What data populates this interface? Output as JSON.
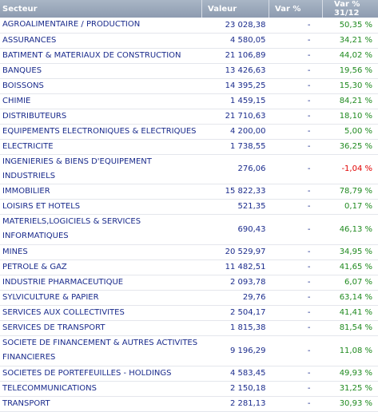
{
  "header": {
    "col_secteur": "Secteur",
    "col_valeur": "Valeur",
    "col_var": "Var %",
    "col_var_ytd": "Var % 31/12"
  },
  "colors": {
    "positive": "#1f8a1f",
    "negative": "#e10000",
    "text": "#1a2b8c",
    "header_bg": "#9aa7bb"
  },
  "rows": [
    {
      "secteur": "AGROALIMENTAIRE / PRODUCTION",
      "valeur": "23 028,38",
      "var": "-",
      "var_ytd": "50,35 %",
      "sign": "pos"
    },
    {
      "secteur": "ASSURANCES",
      "valeur": "4 580,05",
      "var": "-",
      "var_ytd": "34,21 %",
      "sign": "pos"
    },
    {
      "secteur": "BATIMENT & MATERIAUX DE CONSTRUCTION",
      "valeur": "21 106,89",
      "var": "-",
      "var_ytd": "44,02 %",
      "sign": "pos"
    },
    {
      "secteur": "BANQUES",
      "valeur": "13 426,63",
      "var": "-",
      "var_ytd": "19,56 %",
      "sign": "pos"
    },
    {
      "secteur": "BOISSONS",
      "valeur": "14 395,25",
      "var": "-",
      "var_ytd": "15,30 %",
      "sign": "pos"
    },
    {
      "secteur": "CHIMIE",
      "valeur": "1 459,15",
      "var": "-",
      "var_ytd": "84,21 %",
      "sign": "pos"
    },
    {
      "secteur": "DISTRIBUTEURS",
      "valeur": "21 710,63",
      "var": "-",
      "var_ytd": "18,10 %",
      "sign": "pos"
    },
    {
      "secteur": "EQUIPEMENTS ELECTRONIQUES & ELECTRIQUES",
      "valeur": "4 200,00",
      "var": "-",
      "var_ytd": "5,00 %",
      "sign": "pos"
    },
    {
      "secteur": "ELECTRICITE",
      "valeur": "1 738,55",
      "var": "-",
      "var_ytd": "36,25 %",
      "sign": "pos"
    },
    {
      "secteur": "INGENIERIES & BIENS D'EQUIPEMENT INDUSTRIELS",
      "valeur": "276,06",
      "var": "-",
      "var_ytd": "-1,04 %",
      "sign": "neg"
    },
    {
      "secteur": "IMMOBILIER",
      "valeur": "15 822,33",
      "var": "-",
      "var_ytd": "78,79 %",
      "sign": "pos"
    },
    {
      "secteur": "LOISIRS ET HOTELS",
      "valeur": "521,35",
      "var": "-",
      "var_ytd": "0,17 %",
      "sign": "pos"
    },
    {
      "secteur": "MATERIELS,LOGICIELS & SERVICES INFORMATIQUES",
      "valeur": "690,43",
      "var": "-",
      "var_ytd": "46,13 %",
      "sign": "pos",
      "tall": true
    },
    {
      "secteur": "MINES",
      "valeur": "20 529,97",
      "var": "-",
      "var_ytd": "34,95 %",
      "sign": "pos"
    },
    {
      "secteur": "PETROLE & GAZ",
      "valeur": "11 482,51",
      "var": "-",
      "var_ytd": "41,65 %",
      "sign": "pos"
    },
    {
      "secteur": "INDUSTRIE PHARMACEUTIQUE",
      "valeur": "2 093,78",
      "var": "-",
      "var_ytd": "6,07 %",
      "sign": "pos"
    },
    {
      "secteur": "SYLVICULTURE & PAPIER",
      "valeur": "29,76",
      "var": "-",
      "var_ytd": "63,14 %",
      "sign": "pos"
    },
    {
      "secteur": "SERVICES AUX COLLECTIVITES",
      "valeur": "2 504,17",
      "var": "-",
      "var_ytd": "41,41 %",
      "sign": "pos"
    },
    {
      "secteur": "SERVICES DE TRANSPORT",
      "valeur": "1 815,38",
      "var": "-",
      "var_ytd": "81,54 %",
      "sign": "pos"
    },
    {
      "secteur": "SOCIETE DE FINANCEMENT & AUTRES ACTIVITES FINANCIERES",
      "valeur": "9 196,29",
      "var": "-",
      "var_ytd": "11,08 %",
      "sign": "pos",
      "tall": true
    },
    {
      "secteur": "SOCIETES DE PORTEFEUILLES - HOLDINGS",
      "valeur": "4 583,45",
      "var": "-",
      "var_ytd": "49,93 %",
      "sign": "pos"
    },
    {
      "secteur": "TELECOMMUNICATIONS",
      "valeur": "2 150,18",
      "var": "-",
      "var_ytd": "31,25 %",
      "sign": "pos"
    },
    {
      "secteur": "TRANSPORT",
      "valeur": "2 281,13",
      "var": "-",
      "var_ytd": "30,93 %",
      "sign": "pos"
    }
  ]
}
